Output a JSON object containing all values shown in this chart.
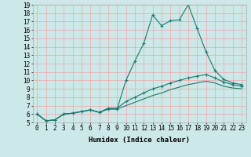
{
  "xlabel": "Humidex (Indice chaleur)",
  "bg_color": "#cce8e8",
  "grid_color": "#e8b0b0",
  "line_color": "#1a7a6e",
  "xlim": [
    -0.5,
    23.5
  ],
  "ylim": [
    5,
    19
  ],
  "xticks": [
    0,
    1,
    2,
    3,
    4,
    5,
    6,
    7,
    8,
    9,
    10,
    11,
    12,
    13,
    14,
    15,
    16,
    17,
    18,
    19,
    20,
    21,
    22,
    23
  ],
  "yticks": [
    5,
    6,
    7,
    8,
    9,
    10,
    11,
    12,
    13,
    14,
    15,
    16,
    17,
    18,
    19
  ],
  "line1_x": [
    0,
    1,
    2,
    3,
    4,
    5,
    6,
    7,
    8,
    9,
    10,
    11,
    12,
    13,
    14,
    15,
    16,
    17,
    18,
    19,
    20,
    21,
    22,
    23
  ],
  "line1_y": [
    6.0,
    5.2,
    5.3,
    6.0,
    6.1,
    6.3,
    6.5,
    6.2,
    6.6,
    6.6,
    10.0,
    12.3,
    14.4,
    17.8,
    16.5,
    17.1,
    17.2,
    19.0,
    16.2,
    13.4,
    11.2,
    10.1,
    9.7,
    9.5
  ],
  "line2_x": [
    0,
    1,
    2,
    3,
    4,
    5,
    6,
    7,
    8,
    9,
    10,
    11,
    12,
    13,
    14,
    15,
    16,
    17,
    18,
    19,
    20,
    21,
    22,
    23
  ],
  "line2_y": [
    6.0,
    5.2,
    5.3,
    6.0,
    6.1,
    6.3,
    6.5,
    6.2,
    6.7,
    6.7,
    7.5,
    8.0,
    8.5,
    9.0,
    9.3,
    9.7,
    10.0,
    10.3,
    10.5,
    10.7,
    10.3,
    9.8,
    9.5,
    9.3
  ],
  "line3_x": [
    0,
    1,
    2,
    3,
    4,
    5,
    6,
    7,
    8,
    9,
    10,
    11,
    12,
    13,
    14,
    15,
    16,
    17,
    18,
    19,
    20,
    21,
    22,
    23
  ],
  "line3_y": [
    6.0,
    5.2,
    5.3,
    6.0,
    6.1,
    6.3,
    6.5,
    6.2,
    6.6,
    6.6,
    7.0,
    7.4,
    7.8,
    8.2,
    8.5,
    8.9,
    9.2,
    9.5,
    9.7,
    9.9,
    9.7,
    9.3,
    9.1,
    9.0
  ],
  "xlabel_fontsize": 6.5,
  "tick_fontsize": 5.5
}
